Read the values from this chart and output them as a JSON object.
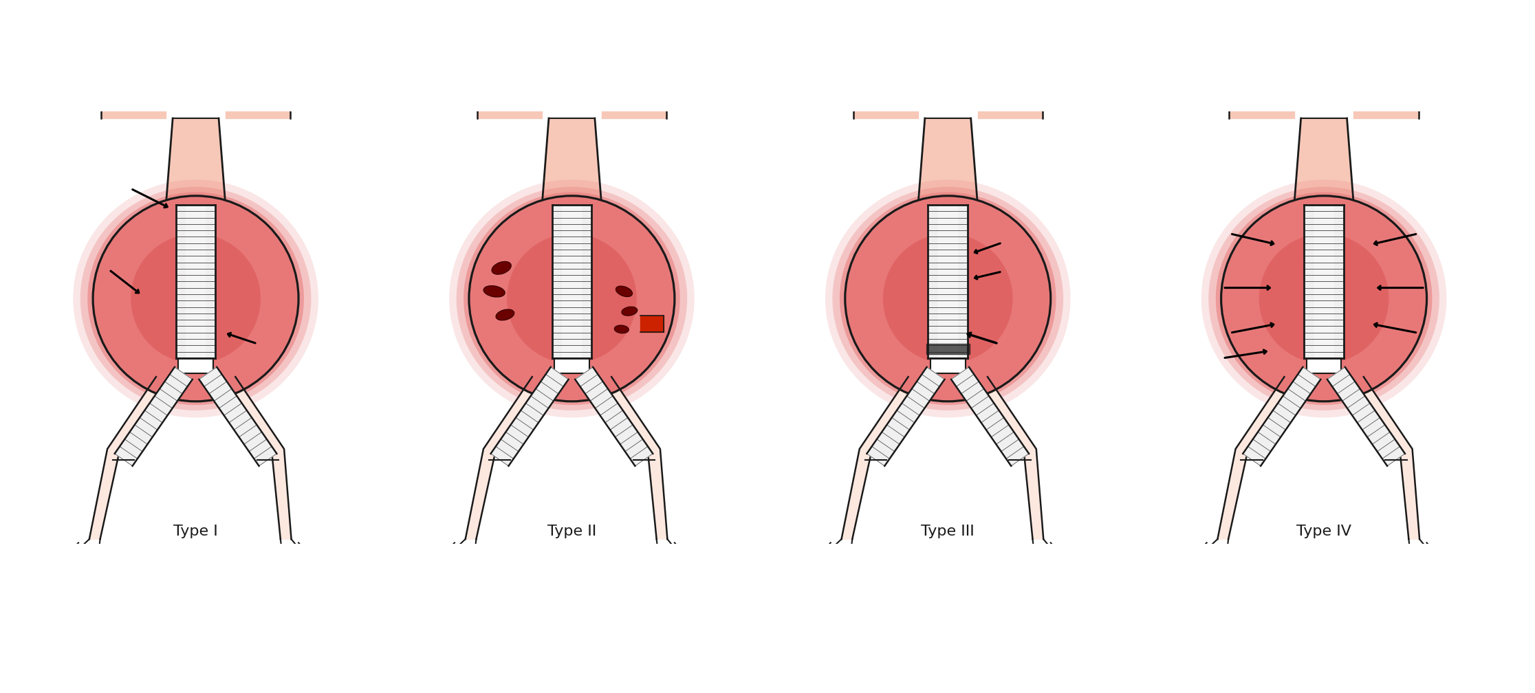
{
  "labels": [
    "Type I",
    "Type II",
    "Type III",
    "Type IV"
  ],
  "bg_color": "#ffffff",
  "aneurysm_red_center": "#d95050",
  "aneurysm_red_outer": "#e87878",
  "aneurysm_light_edge": "#f0a0a0",
  "vessel_pink": "#f7c8b8",
  "vessel_light": "#fde8e0",
  "graft_white": "#f0f0f0",
  "graft_stripe": "#555555",
  "outline": "#1a1a1a",
  "label_fontsize": 16,
  "dark_red_blob": "#6b0000"
}
